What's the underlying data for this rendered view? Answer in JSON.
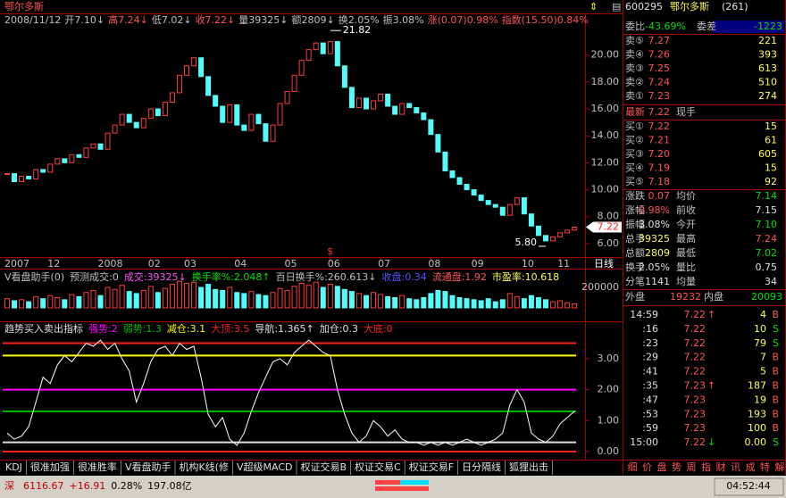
{
  "title_bar": {
    "name": "鄂尔多斯"
  },
  "info_line": [
    {
      "text": "2008/11/12",
      "color": "#c0c0c0"
    },
    {
      "text": "开7.10↓",
      "color": "#c0c0c0"
    },
    {
      "text": "高7.24↓",
      "color": "#ff5454"
    },
    {
      "text": "低7.02↓",
      "color": "#c0c0c0"
    },
    {
      "text": "收7.22↓",
      "color": "#ff5454"
    },
    {
      "text": "量39325↓",
      "color": "#c0c0c0"
    },
    {
      "text": "额2809↓",
      "color": "#c0c0c0"
    },
    {
      "text": "换2.05%",
      "color": "#c0c0c0"
    },
    {
      "text": "振3.08%",
      "color": "#c0c0c0"
    },
    {
      "text": "涨(0.07)0.98%",
      "color": "#ff5454"
    },
    {
      "text": "指数(15.50)0.84%",
      "color": "#ff5454"
    }
  ],
  "chart_data": [
    {
      "type": "candlestick",
      "categories": [
        "2007",
        null,
        null,
        null,
        null,
        null,
        "12",
        null,
        null,
        null,
        null,
        null,
        null,
        "2008",
        null,
        null,
        null,
        null,
        null,
        null,
        "02",
        null,
        null,
        null,
        null,
        "03",
        null,
        null,
        null,
        null,
        null,
        null,
        "04",
        null,
        null,
        null,
        null,
        null,
        null,
        "05",
        null,
        null,
        null,
        null,
        null,
        "06",
        null,
        null,
        null,
        null,
        null,
        null,
        "07",
        null,
        null,
        null,
        null,
        null,
        null,
        "08",
        null,
        null,
        null,
        null,
        null,
        "09",
        null,
        null,
        null,
        null,
        null,
        null,
        "10",
        null,
        null,
        null,
        null,
        "11",
        null,
        null
      ],
      "values": [
        11.2,
        10.6,
        11.0,
        10.8,
        11.5,
        11.3,
        11.9,
        12.3,
        12.0,
        12.6,
        12.4,
        13.1,
        13.4,
        13.0,
        14.2,
        14.8,
        15.6,
        15.0,
        14.6,
        15.3,
        16.0,
        15.5,
        16.5,
        17.2,
        18.5,
        19.2,
        19.8,
        18.4,
        17.0,
        16.2,
        15.0,
        16.3,
        14.8,
        14.4,
        15.6,
        14.9,
        13.6,
        14.8,
        16.4,
        17.3,
        18.5,
        19.6,
        20.4,
        20.9,
        20.1,
        21.0,
        19.2,
        17.6,
        16.1,
        16.8,
        16.0,
        16.6,
        17.1,
        16.2,
        15.6,
        16.4,
        16.1,
        15.7,
        15.2,
        14.1,
        12.8,
        11.4,
        10.9,
        10.4,
        10.0,
        9.6,
        9.2,
        8.9,
        8.7,
        8.1,
        8.9,
        9.4,
        8.2,
        7.3,
        6.6,
        6.2,
        6.5,
        6.8,
        7.0,
        7.22
      ],
      "ylim": [
        5.0,
        22.1
      ],
      "yticks": [
        {
          "value": 6,
          "label": "6.00"
        },
        {
          "value": 8,
          "label": "8.00"
        },
        {
          "value": 10,
          "label": "10.00"
        },
        {
          "value": 12,
          "label": "12.00"
        },
        {
          "value": 14,
          "label": "14.00"
        },
        {
          "value": 16,
          "label": "16.00"
        },
        {
          "value": 18,
          "label": "18.00"
        },
        {
          "value": 20,
          "label": "20.00"
        }
      ],
      "up_color": "#ff3c3c",
      "down_color": "#54fcfc",
      "annotations": [
        {
          "index": 45,
          "value": 21.82,
          "label": "21.82"
        },
        {
          "index": 75,
          "value": 5.8,
          "label": "5.80"
        }
      ],
      "marker": "$",
      "period": "日线"
    },
    {
      "type": "bar",
      "header": [
        {
          "text": "V看盘助手(0)",
          "color": "#c0c0c0"
        },
        {
          "text": "预测成交:0",
          "color": "#c0c0c0"
        },
        {
          "text": "成交:39325↓",
          "color": "#ff54ff"
        },
        {
          "text": "换手率%:2.048↑",
          "color": "#00e000"
        },
        {
          "text": "百日换手%:260.613↓",
          "color": "#c0c0c0"
        },
        {
          "text": "收盘:0.34",
          "color": "#5454ff"
        },
        {
          "text": "流通盘:1.92",
          "color": "#ff5454"
        },
        {
          "text": "市盈率:10.618",
          "color": "#ffff54"
        }
      ],
      "values": [
        90000,
        70000,
        80000,
        60000,
        110000,
        90000,
        120000,
        100000,
        80000,
        130000,
        110000,
        150000,
        170000,
        120000,
        200000,
        180000,
        220000,
        160000,
        140000,
        170000,
        210000,
        150000,
        190000,
        230000,
        260000,
        240000,
        250000,
        200000,
        230000,
        180000,
        170000,
        200000,
        150000,
        140000,
        160000,
        130000,
        120000,
        150000,
        190000,
        170000,
        210000,
        240000,
        220000,
        250000,
        200000,
        230000,
        210000,
        180000,
        160000,
        140000,
        120000,
        150000,
        130000,
        110000,
        100000,
        120000,
        90000,
        80000,
        100000,
        140000,
        170000,
        160000,
        120000,
        100000,
        90000,
        80000,
        70000,
        90000,
        60000,
        80000,
        140000,
        110000,
        90000,
        120000,
        100000,
        80000,
        60000,
        70000,
        50000,
        40000
      ],
      "ylim": [
        0,
        374000
      ],
      "yticks": [
        200000
      ]
    },
    {
      "type": "line",
      "title": "趋势买入卖出指标",
      "levels": [
        {
          "text": "强势:2",
          "value": 2,
          "color": "#ff00ff"
        },
        {
          "text": "弱势:1.3",
          "value": 1.3,
          "color": "#00c000"
        },
        {
          "text": "减仓:3.1",
          "value": 3.1,
          "color": "#ffff00"
        },
        {
          "text": "大顶:3.5",
          "value": 3.5,
          "color": "#ff2020"
        },
        {
          "text": "导航:1.365↑",
          "color": "#e0e0e0"
        },
        {
          "text": "加仓:0.3",
          "value": 0.3,
          "color": "#e0e0e0"
        },
        {
          "text": "大底:0",
          "value": 0,
          "color": "#ff2020"
        }
      ],
      "values": [
        0.6,
        0.4,
        0.5,
        0.8,
        1.6,
        2.4,
        2.2,
        2.8,
        3.1,
        2.9,
        3.2,
        3.5,
        3.4,
        3.6,
        3.3,
        3.5,
        3.0,
        2.6,
        1.6,
        2.2,
        2.9,
        3.3,
        3.4,
        3.1,
        3.5,
        3.3,
        3.4,
        2.4,
        1.2,
        0.8,
        1.1,
        0.4,
        0.2,
        0.6,
        1.3,
        1.9,
        2.4,
        2.9,
        3.0,
        2.8,
        3.2,
        3.4,
        3.6,
        3.4,
        3.2,
        3.1,
        2.0,
        1.2,
        0.6,
        0.3,
        0.5,
        1.0,
        0.8,
        0.5,
        0.7,
        0.4,
        0.3,
        0.3,
        0.2,
        0.3,
        0.2,
        0.3,
        0.2,
        0.3,
        0.4,
        0.3,
        0.2,
        0.3,
        0.4,
        0.6,
        1.5,
        2.0,
        1.6,
        0.6,
        0.4,
        0.3,
        0.5,
        0.9,
        1.1,
        1.3
      ],
      "color": "#ffffff",
      "ylim": [
        -0.26,
        4.15
      ],
      "yticks": [
        {
          "value": 0,
          "label": "0.00"
        },
        {
          "value": 1,
          "label": "1.00"
        },
        {
          "value": 2,
          "label": "2.00"
        },
        {
          "value": 3,
          "label": "3.00"
        }
      ]
    }
  ],
  "tabs": [
    "KDJ",
    "很准加强",
    "很准胜率",
    "V看盘助手",
    "机构K线(修",
    "V超级MACD",
    "权证交易B",
    "权证交易C",
    "权证交易F",
    "日分隔线",
    "狐狸出击"
  ],
  "quote": {
    "code": "600295",
    "name": "鄂尔多斯",
    "count": "(261)",
    "ratio_label": "委比",
    "ratio": "-43.69%",
    "diff_label": "委差",
    "diff": "-1223",
    "asks": [
      [
        "卖⑤",
        "7.27",
        "221"
      ],
      [
        "卖④",
        "7.26",
        "393"
      ],
      [
        "卖③",
        "7.25",
        "613"
      ],
      [
        "卖②",
        "7.24",
        "510"
      ],
      [
        "卖①",
        "7.23",
        "274"
      ]
    ],
    "last": [
      "最新",
      "7.22",
      "现手"
    ],
    "bids": [
      [
        "买①",
        "7.22",
        "15"
      ],
      [
        "买②",
        "7.21",
        "61"
      ],
      [
        "买③",
        "7.20",
        "605"
      ],
      [
        "买④",
        "7.19",
        "15"
      ],
      [
        "买⑤",
        "7.18",
        "92"
      ]
    ],
    "stats": [
      {
        "label": "涨跌",
        "value": "0.07",
        "color": "#ff5454"
      },
      {
        "label": "均价",
        "value": "7.14",
        "color": "#00e000"
      },
      {
        "label": "涨幅",
        "value": "0.98%",
        "color": "#ff5454"
      },
      {
        "label": "前收",
        "value": "7.15",
        "color": "#e0e0e0"
      },
      {
        "label": "振幅",
        "value": "3.08%",
        "color": "#e0e0e0"
      },
      {
        "label": "今开",
        "value": "7.10",
        "color": "#00e000"
      },
      {
        "label": "总手",
        "value": "39325",
        "color": "#ffff54"
      },
      {
        "label": "最高",
        "value": "7.24",
        "color": "#ff5454"
      },
      {
        "label": "总额",
        "value": "2809",
        "color": "#ffff54"
      },
      {
        "label": "最低",
        "value": "7.02",
        "color": "#00e000"
      },
      {
        "label": "换手",
        "value": "2.05%",
        "color": "#e0e0e0"
      },
      {
        "label": "量比",
        "value": "0.75",
        "color": "#e0e0e0"
      },
      {
        "label": "分笔",
        "value": "1141",
        "color": "#e0e0e0"
      },
      {
        "label": "均量",
        "value": "34",
        "color": "#e0e0e0"
      }
    ],
    "outer": [
      "外盘",
      "19232",
      "内盘",
      "20093"
    ],
    "ticks": [
      {
        "time": "14:59",
        "price": "7.22",
        "arrow": "↑",
        "volume": "4",
        "side": "B"
      },
      {
        "time": ":16",
        "price": "7.22",
        "volume": "10",
        "side": "S"
      },
      {
        "time": ":23",
        "price": "7.22",
        "volume": "79",
        "side": "S"
      },
      {
        "time": ":29",
        "price": "7.22",
        "volume": "7",
        "side": "B"
      },
      {
        "time": ":41",
        "price": "7.22",
        "volume": "5",
        "side": "B"
      },
      {
        "time": ":35",
        "price": "7.23",
        "arrow": "↑",
        "volume": "187",
        "side": "B"
      },
      {
        "time": ":47",
        "price": "7.23",
        "volume": "19",
        "side": "B"
      },
      {
        "time": ":53",
        "price": "7.23",
        "volume": "193",
        "side": "B"
      },
      {
        "time": ":59",
        "price": "7.23",
        "volume": "100",
        "side": "B"
      },
      {
        "time": "15:00",
        "price": "7.22",
        "arrow": "↓",
        "volume": "0.00",
        "side": "S"
      }
    ]
  },
  "side_tabs": [
    "细",
    "价",
    "盘",
    "势",
    "周",
    "指",
    "财",
    "讯",
    "成",
    "特",
    "解"
  ],
  "status": {
    "items": [
      {
        "text": "深",
        "color": "#c00000"
      },
      {
        "text": "6116.67",
        "color": "#c00000"
      },
      {
        "text": "+16.91",
        "color": "#c00000"
      },
      {
        "text": "0.28%",
        "color": "#000000"
      },
      {
        "text": "197.08亿",
        "color": "#000000"
      }
    ],
    "time": "04:52:44"
  }
}
